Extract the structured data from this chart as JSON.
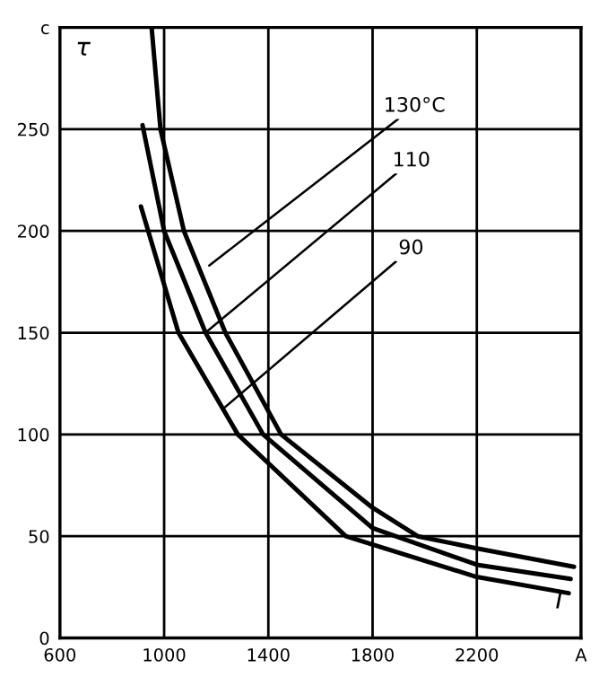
{
  "chart_data": {
    "type": "line",
    "xlabel": "I",
    "ylabel": "τ",
    "xlim": [
      600,
      2600
    ],
    "xticks": [
      600,
      1000,
      1400,
      1800,
      2200,
      {
        "value": 2600,
        "label": "A"
      }
    ],
    "ylim": [
      0,
      300
    ],
    "yticks": [
      0,
      50,
      100,
      150,
      200,
      250,
      {
        "value": 300,
        "label": "c"
      }
    ],
    "grid": true,
    "marker": "none",
    "line_style": "solid",
    "series": [
      {
        "color": "#000000",
        "x": [
          952,
          986,
          1076,
          1235,
          1449,
          1800,
          1973,
          2200,
          2573
        ],
        "values": [
          300,
          250,
          200,
          150,
          100,
          64,
          50,
          44,
          35
        ]
      },
      {
        "color": "#000000",
        "x": [
          917,
          1000,
          1159,
          1380,
          1800,
          2200,
          2560
        ],
        "values": [
          252,
          200,
          150,
          100,
          54,
          36,
          29
        ]
      },
      {
        "color": "#000000",
        "x": [
          911,
          1055,
          1283,
          1697,
          2200,
          2553
        ],
        "values": [
          212,
          150,
          100,
          50,
          30,
          22
        ]
      }
    ],
    "annotations": [
      {
        "text": "130°C",
        "x": 1173,
        "y": 183
      },
      {
        "text": "110",
        "x": 1159,
        "y": 150
      },
      {
        "text": "90",
        "x": 1230,
        "y": 113
      }
    ]
  }
}
